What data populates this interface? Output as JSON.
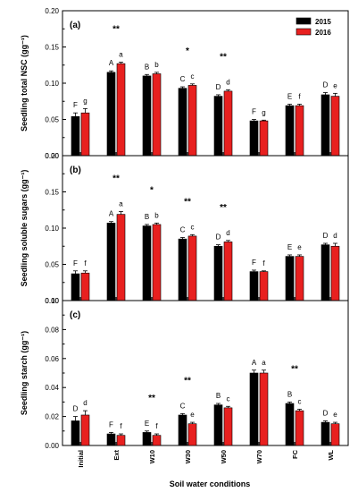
{
  "colors": {
    "s2015": "#000000",
    "s2016": "#e8201f"
  },
  "legend": [
    "2015",
    "2016"
  ],
  "xlabel": "Soil water conditions",
  "categories": [
    "Initial",
    "Ext",
    "W10",
    "W30",
    "W50",
    "W70",
    "FC",
    "WL"
  ],
  "chart_data": [
    {
      "type": "bar",
      "panel": "(a)",
      "ylabel": "Seedling total NSC (gg⁻¹)",
      "ylim": [
        0,
        0.2
      ],
      "yticks": [
        "0.00",
        "0.05",
        "0.10",
        "0.15",
        "0.20"
      ],
      "categories": [
        "Initial",
        "Ext",
        "W10",
        "W30",
        "W50",
        "W70",
        "FC",
        "WL"
      ],
      "series": [
        {
          "name": "2015",
          "values": [
            0.054,
            0.115,
            0.11,
            0.093,
            0.082,
            0.048,
            0.069,
            0.084
          ],
          "errors": [
            0.005,
            0.002,
            0.002,
            0.002,
            0.002,
            0.002,
            0.002,
            0.003
          ],
          "letters": [
            "F",
            "A",
            "B",
            "C",
            "D",
            "F",
            "E",
            "D"
          ]
        },
        {
          "name": "2016",
          "values": [
            0.059,
            0.127,
            0.113,
            0.097,
            0.089,
            0.048,
            0.069,
            0.082
          ],
          "errors": [
            0.006,
            0.002,
            0.002,
            0.002,
            0.002,
            0.001,
            0.002,
            0.004
          ],
          "letters": [
            "g",
            "a",
            "b",
            "c",
            "d",
            "g",
            "f",
            "e"
          ]
        }
      ],
      "annotations": [
        {
          "category": "Ext",
          "text": "**"
        },
        {
          "category": "W30",
          "text": "*"
        },
        {
          "category": "W50",
          "text": "**"
        }
      ]
    },
    {
      "type": "bar",
      "panel": "(b)",
      "ylabel": "Seedling soluble sugars (gg⁻¹)",
      "ylim": [
        0,
        0.2
      ],
      "yticks": [
        "0.00",
        "0.05",
        "0.10",
        "0.15",
        "0.20"
      ],
      "categories": [
        "Initial",
        "Ext",
        "W10",
        "W30",
        "W50",
        "W70",
        "FC",
        "WL"
      ],
      "series": [
        {
          "name": "2015",
          "values": [
            0.037,
            0.107,
            0.103,
            0.085,
            0.075,
            0.04,
            0.061,
            0.077
          ],
          "errors": [
            0.004,
            0.002,
            0.002,
            0.002,
            0.002,
            0.002,
            0.002,
            0.002
          ],
          "letters": [
            "F",
            "A",
            "B",
            "C",
            "D",
            "F",
            "E",
            "D"
          ]
        },
        {
          "name": "2016",
          "values": [
            0.038,
            0.119,
            0.105,
            0.089,
            0.081,
            0.04,
            0.061,
            0.075
          ],
          "errors": [
            0.003,
            0.004,
            0.002,
            0.002,
            0.002,
            0.001,
            0.002,
            0.004
          ],
          "letters": [
            "f",
            "a",
            "b",
            "c",
            "d",
            "f",
            "e",
            "d"
          ]
        }
      ],
      "annotations": [
        {
          "category": "Ext",
          "text": "**"
        },
        {
          "category": "W10",
          "text": "*"
        },
        {
          "category": "W30",
          "text": "**"
        },
        {
          "category": "W50",
          "text": "**"
        }
      ]
    },
    {
      "type": "bar",
      "panel": "(c)",
      "ylabel": "Seedling starch (gg⁻¹)",
      "ylim": [
        0,
        0.1
      ],
      "yticks": [
        "0.00",
        "0.02",
        "0.04",
        "0.06",
        "0.08",
        "0.10"
      ],
      "categories": [
        "Initial",
        "Ext",
        "W10",
        "W30",
        "W50",
        "W70",
        "FC",
        "WL"
      ],
      "series": [
        {
          "name": "2015",
          "values": [
            0.017,
            0.008,
            0.009,
            0.021,
            0.028,
            0.05,
            0.029,
            0.016
          ],
          "errors": [
            0.003,
            0.001,
            0.001,
            0.001,
            0.001,
            0.002,
            0.001,
            0.001
          ],
          "letters": [
            "D",
            "F",
            "E",
            "C",
            "B",
            "A",
            "B",
            "D"
          ]
        },
        {
          "name": "2016",
          "values": [
            0.021,
            0.007,
            0.007,
            0.015,
            0.026,
            0.05,
            0.024,
            0.015
          ],
          "errors": [
            0.003,
            0.001,
            0.001,
            0.001,
            0.001,
            0.002,
            0.001,
            0.001
          ],
          "letters": [
            "d",
            "f",
            "f",
            "e",
            "c",
            "a",
            "c",
            "e"
          ]
        }
      ],
      "annotations": [
        {
          "category": "W10",
          "text": "**"
        },
        {
          "category": "W30",
          "text": "**"
        },
        {
          "category": "FC",
          "text": "**"
        }
      ]
    }
  ]
}
